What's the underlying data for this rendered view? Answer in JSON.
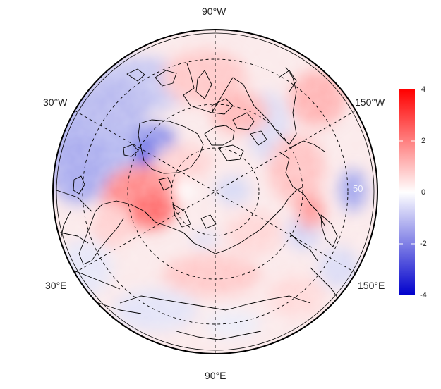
{
  "map": {
    "projection": "north-polar-stereographic",
    "longitude_labels": {
      "top": "90°W",
      "upper_left": "30°W",
      "upper_right": "150°W",
      "lower_left": "30°E",
      "lower_right": "150°E",
      "bottom": "90°E"
    },
    "inner_latitude_label": "50",
    "graticule": {
      "style": "dashed",
      "color": "#000000"
    }
  },
  "colorbar": {
    "colors": {
      "max": "#ff0000",
      "mid": "#ffffff",
      "min": "#0000cc"
    },
    "range": [
      -4,
      4
    ],
    "ticks": [
      "4",
      "2",
      "0",
      "-2",
      "-4"
    ]
  }
}
